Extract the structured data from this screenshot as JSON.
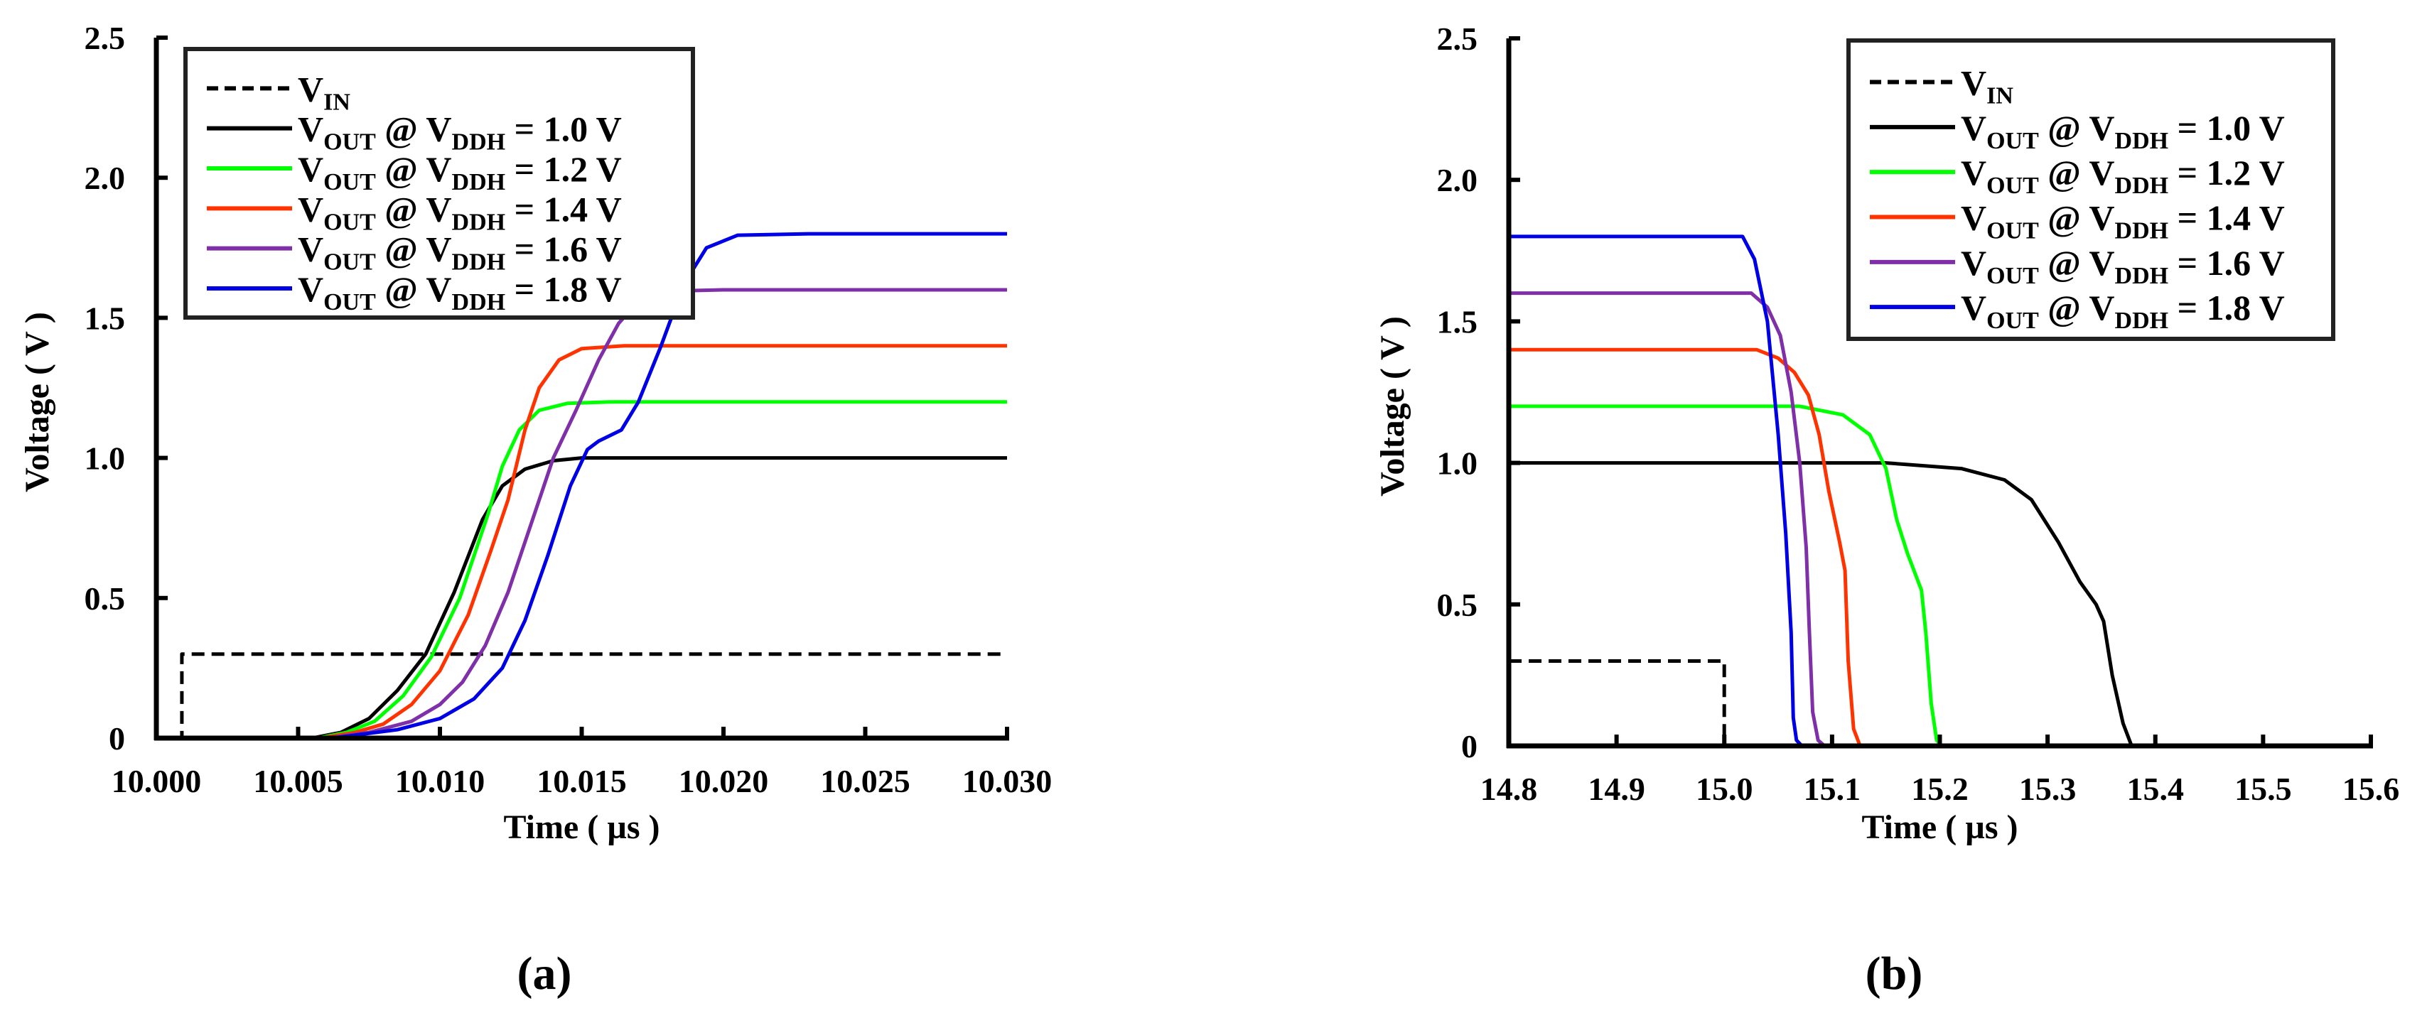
{
  "chart_data": [
    {
      "panel": "(a)",
      "type": "line",
      "title": "",
      "xlabel": "Time ( µs )",
      "ylabel": "Voltage ( V )",
      "xlim": [
        10.0,
        10.03
      ],
      "ylim": [
        0,
        2.5
      ],
      "xticks": [
        "10.000",
        "10.005",
        "10.010",
        "10.015",
        "10.020",
        "10.025",
        "10.030"
      ],
      "xtick_values": [
        10.0,
        10.005,
        10.01,
        10.015,
        10.02,
        10.025,
        10.03
      ],
      "yticks": [
        "0",
        "0.5",
        "1.0",
        "1.5",
        "2.0",
        "2.5"
      ],
      "ytick_values": [
        0,
        0.5,
        1.0,
        1.5,
        2.0,
        2.5
      ],
      "grid": false,
      "legend_position": "upper left",
      "series": [
        {
          "name": "V_IN",
          "label_main": "V",
          "label_sub": "IN",
          "label_rest": "",
          "color": "#000000",
          "dashed": true,
          "x": [
            10.0,
            10.0009,
            10.0009,
            10.03
          ],
          "y": [
            0,
            0,
            0.3,
            0.3
          ]
        },
        {
          "name": "V_OUT @ V_DDH = 1.0 V",
          "label_main": "V",
          "label_sub": "OUT",
          "label_rest": "1.0 V",
          "color": "#000000",
          "dashed": false,
          "x": [
            10.0,
            10.0055,
            10.0065,
            10.0075,
            10.0085,
            10.0095,
            10.0105,
            10.0115,
            10.0122,
            10.013,
            10.014,
            10.015,
            10.03
          ],
          "y": [
            0,
            0,
            0.02,
            0.07,
            0.17,
            0.3,
            0.52,
            0.78,
            0.9,
            0.96,
            0.99,
            1.0,
            1.0
          ]
        },
        {
          "name": "V_OUT @ V_DDH = 1.2 V",
          "label_main": "V",
          "label_sub": "OUT",
          "label_rest": "1.2 V",
          "color": "#00ff00",
          "dashed": false,
          "x": [
            10.0,
            10.0057,
            10.0067,
            10.0077,
            10.0087,
            10.0097,
            10.0107,
            10.0117,
            10.0122,
            10.0128,
            10.0135,
            10.0145,
            10.016,
            10.03
          ],
          "y": [
            0,
            0,
            0.02,
            0.06,
            0.15,
            0.29,
            0.5,
            0.8,
            0.97,
            1.1,
            1.17,
            1.195,
            1.2,
            1.2
          ]
        },
        {
          "name": "V_OUT @ V_DDH = 1.4 V",
          "label_main": "V",
          "label_sub": "OUT",
          "label_rest": "1.4 V",
          "color": "#ff3300",
          "dashed": false,
          "x": [
            10.0,
            10.0058,
            10.007,
            10.008,
            10.009,
            10.01,
            10.011,
            10.0118,
            10.0124,
            10.013,
            10.0135,
            10.0142,
            10.015,
            10.0165,
            10.03
          ],
          "y": [
            0,
            0,
            0.02,
            0.05,
            0.12,
            0.24,
            0.44,
            0.67,
            0.85,
            1.1,
            1.25,
            1.35,
            1.39,
            1.4,
            1.4
          ]
        },
        {
          "name": "V_OUT @ V_DDH = 1.6 V",
          "label_main": "V",
          "label_sub": "OUT",
          "label_rest": "1.6 V",
          "color": "#7f2fa8",
          "dashed": false,
          "x": [
            10.0,
            10.006,
            10.0075,
            10.009,
            10.01,
            10.0108,
            10.0116,
            10.0124,
            10.0132,
            10.014,
            10.0148,
            10.0156,
            10.0163,
            10.017,
            10.018,
            10.02,
            10.03
          ],
          "y": [
            0,
            0,
            0.02,
            0.06,
            0.12,
            0.2,
            0.33,
            0.52,
            0.76,
            1.0,
            1.17,
            1.35,
            1.48,
            1.56,
            1.595,
            1.6,
            1.6
          ]
        },
        {
          "name": "V_OUT @ V_DDH = 1.8 V",
          "label_main": "V",
          "label_sub": "OUT",
          "label_rest": "1.8 V",
          "color": "#0000e6",
          "dashed": false,
          "x": [
            10.0,
            10.0062,
            10.0085,
            10.01,
            10.0112,
            10.0122,
            10.013,
            10.0138,
            10.0146,
            10.0152,
            10.0156,
            10.0164,
            10.017,
            10.0178,
            10.0186,
            10.0194,
            10.0205,
            10.023,
            10.03
          ],
          "y": [
            0,
            0,
            0.03,
            0.07,
            0.14,
            0.25,
            0.42,
            0.65,
            0.9,
            1.03,
            1.06,
            1.1,
            1.2,
            1.4,
            1.62,
            1.75,
            1.795,
            1.8,
            1.8
          ]
        }
      ]
    },
    {
      "panel": "(b)",
      "type": "line",
      "title": "",
      "xlabel": "Time ( µs )",
      "ylabel": "Voltage ( V )",
      "xlim": [
        14.8,
        15.6
      ],
      "ylim": [
        0,
        2.5
      ],
      "xticks": [
        "14.8",
        "14.9",
        "15.0",
        "15.1",
        "15.2",
        "15.3",
        "15.4",
        "15.5",
        "15.6"
      ],
      "xtick_values": [
        14.8,
        14.9,
        15.0,
        15.1,
        15.2,
        15.3,
        15.4,
        15.5,
        15.6
      ],
      "yticks": [
        "0",
        "0.5",
        "1.0",
        "1.5",
        "2.0",
        "2.5"
      ],
      "ytick_values": [
        0,
        0.5,
        1.0,
        1.5,
        2.0,
        2.5
      ],
      "grid": false,
      "legend_position": "upper right",
      "series": [
        {
          "name": "V_IN",
          "label_main": "V",
          "label_sub": "IN",
          "label_rest": "",
          "color": "#000000",
          "dashed": true,
          "x": [
            14.8,
            15.0,
            15.0,
            15.6
          ],
          "y": [
            0.3,
            0.3,
            0,
            0
          ]
        },
        {
          "name": "V_OUT @ V_DDH = 1.0 V",
          "label_main": "V",
          "label_sub": "OUT",
          "label_rest": "1.0 V",
          "color": "#000000",
          "dashed": false,
          "x": [
            14.8,
            15.15,
            15.22,
            15.26,
            15.285,
            15.31,
            15.33,
            15.345,
            15.352,
            15.36,
            15.37,
            15.378,
            15.6
          ],
          "y": [
            1.0,
            1.0,
            0.98,
            0.94,
            0.87,
            0.72,
            0.58,
            0.5,
            0.44,
            0.25,
            0.08,
            0,
            0
          ]
        },
        {
          "name": "V_OUT @ V_DDH = 1.2 V",
          "label_main": "V",
          "label_sub": "OUT",
          "label_rest": "1.2 V",
          "color": "#00ff00",
          "dashed": false,
          "x": [
            14.8,
            15.07,
            15.11,
            15.135,
            15.15,
            15.16,
            15.17,
            15.183,
            15.187,
            15.192,
            15.197,
            15.202,
            15.6
          ],
          "y": [
            1.2,
            1.2,
            1.17,
            1.1,
            0.98,
            0.8,
            0.68,
            0.55,
            0.4,
            0.15,
            0.02,
            0,
            0
          ]
        },
        {
          "name": "V_OUT @ V_DDH = 1.4 V",
          "label_main": "V",
          "label_sub": "OUT",
          "label_rest": "1.4 V",
          "color": "#ff3300",
          "dashed": false,
          "x": [
            14.8,
            15.03,
            15.05,
            15.065,
            15.078,
            15.088,
            15.097,
            15.107,
            15.112,
            15.115,
            15.12,
            15.126,
            15.6
          ],
          "y": [
            1.4,
            1.4,
            1.37,
            1.32,
            1.24,
            1.1,
            0.9,
            0.72,
            0.62,
            0.3,
            0.06,
            0,
            0
          ]
        },
        {
          "name": "V_OUT @ V_DDH = 1.6 V",
          "label_main": "V",
          "label_sub": "OUT",
          "label_rest": "1.6 V",
          "color": "#7f2fa8",
          "dashed": false,
          "x": [
            14.8,
            15.025,
            15.04,
            15.052,
            15.062,
            15.07,
            15.076,
            15.079,
            15.082,
            15.087,
            15.093,
            15.6
          ],
          "y": [
            1.6,
            1.6,
            1.55,
            1.45,
            1.25,
            1.0,
            0.7,
            0.4,
            0.12,
            0.02,
            0,
            0
          ]
        },
        {
          "name": "V_OUT @ V_DDH = 1.8 V",
          "label_main": "V",
          "label_sub": "OUT",
          "label_rest": "1.8 V",
          "color": "#0000e6",
          "dashed": false,
          "x": [
            14.8,
            15.017,
            15.028,
            15.04,
            15.05,
            15.057,
            15.062,
            15.064,
            15.067,
            15.072,
            15.6
          ],
          "y": [
            1.8,
            1.8,
            1.72,
            1.5,
            1.1,
            0.75,
            0.4,
            0.1,
            0.02,
            0,
            0
          ]
        }
      ]
    }
  ],
  "legend_connector": "@",
  "legend_vddh_main": "V",
  "legend_vddh_sub": "DDH",
  "legend_equals": "=",
  "panels": [
    {
      "label": "(a)"
    },
    {
      "label": "(b)"
    }
  ]
}
